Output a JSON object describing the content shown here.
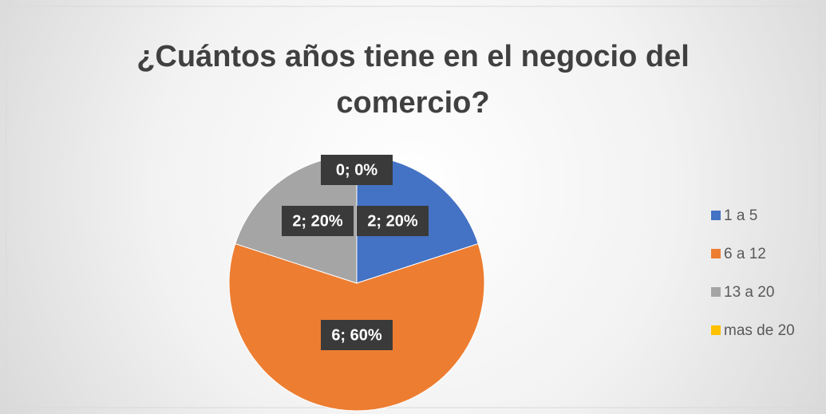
{
  "chart_data": {
    "type": "pie",
    "title": "¿Cuántos años tiene en el negocio del comercio?",
    "categories": [
      "1 a 5",
      "6 a 12",
      "13 a 20",
      "mas de 20"
    ],
    "values": [
      2,
      6,
      2,
      0
    ],
    "value_labels": [
      "2; 20%",
      "6; 60%",
      "2; 20%",
      "0; 0%"
    ],
    "colors": [
      "#4472c4",
      "#ed7d31",
      "#a5a5a5",
      "#ffc000"
    ],
    "legend": "right"
  }
}
